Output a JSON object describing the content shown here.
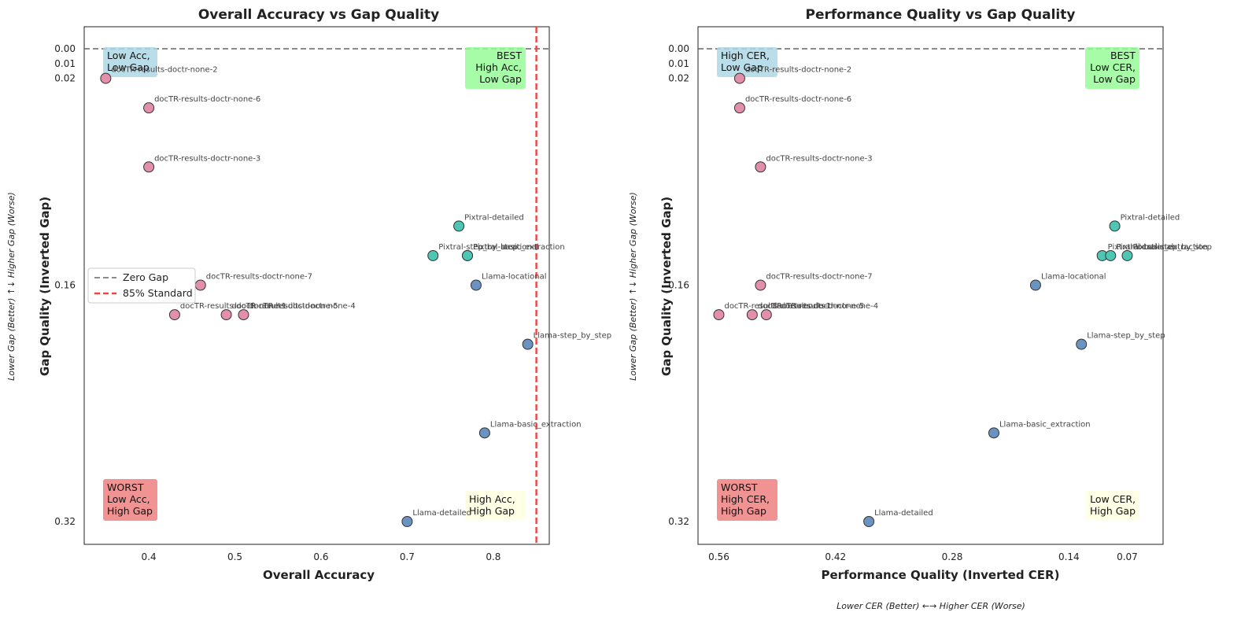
{
  "colors": {
    "docTR": "#e28fab",
    "Pixtral": "#4ec6b4",
    "Llama": "#6a93c1",
    "zero_gap": "#666666",
    "standard": "#ee4444",
    "box_blue": "#add8e6",
    "box_green": "#98fb98",
    "box_red": "#f08080",
    "box_yellow": "#ffffe0"
  },
  "chart_data": [
    {
      "type": "scatter",
      "title": "Overall Accuracy vs Gap Quality",
      "xlabel": "Overall Accuracy",
      "ylabel": "Gap Quality (Inverted Gap)",
      "side_ylabel": "Lower Gap (Better) ↑↓ Higher Gap (Worse)",
      "xlim": [
        0.325,
        0.865
      ],
      "ylim": [
        0.0,
        0.32
      ],
      "y_inverted": true,
      "x_ticks": [
        {
          "v": 0.4,
          "label": "0.4"
        },
        {
          "v": 0.5,
          "label": "0.5"
        },
        {
          "v": 0.6,
          "label": "0.6"
        },
        {
          "v": 0.7,
          "label": "0.7"
        },
        {
          "v": 0.8,
          "label": "0.8"
        }
      ],
      "y_ticks": [
        {
          "v": 0.0,
          "label": "0.00"
        },
        {
          "v": 0.01,
          "label": "0.01"
        },
        {
          "v": 0.02,
          "label": "0.02"
        },
        {
          "v": 0.16,
          "label": "0.16"
        },
        {
          "v": 0.32,
          "label": "0.32"
        }
      ],
      "hlines": [
        {
          "y": 0.0,
          "name": "Zero Gap",
          "style": "dashed",
          "color": "#666666"
        }
      ],
      "vlines": [
        {
          "x": 0.85,
          "name": "85% Standard",
          "style": "dashed",
          "color": "#ee4444"
        }
      ],
      "legend": {
        "placement": "center-left",
        "entries": [
          {
            "label": "Zero Gap",
            "style": "gray-dash"
          },
          {
            "label": "85% Standard",
            "style": "red-dash"
          }
        ]
      },
      "quadrant_boxes": [
        {
          "pos": "top-left",
          "lines": [
            "Low Acc,",
            "Low Gap"
          ],
          "color": "#add8e6",
          "align": "start"
        },
        {
          "pos": "top-right",
          "lines": [
            "BEST",
            "High Acc,",
            "Low Gap"
          ],
          "color": "#98fb98",
          "align": "end"
        },
        {
          "pos": "bottom-left",
          "lines": [
            "WORST",
            "Low Acc,",
            "High Gap"
          ],
          "color": "#f08080",
          "align": "start"
        },
        {
          "pos": "bottom-right",
          "lines": [
            "High Acc,",
            "High Gap"
          ],
          "color": "#ffffe0",
          "align": "start"
        }
      ],
      "points": [
        {
          "label": "docTR-results-doctr-none-2",
          "x": 0.35,
          "y": 0.02,
          "group": "docTR"
        },
        {
          "label": "docTR-results-doctr-none-6",
          "x": 0.4,
          "y": 0.04,
          "group": "docTR"
        },
        {
          "label": "docTR-results-doctr-none-3",
          "x": 0.4,
          "y": 0.08,
          "group": "docTR"
        },
        {
          "label": "docTR-results-doctr-none-7",
          "x": 0.46,
          "y": 0.16,
          "group": "docTR"
        },
        {
          "label": "docTR-results-doctr-none-1",
          "x": 0.43,
          "y": 0.18,
          "group": "docTR"
        },
        {
          "label": "docTR-results-doctr-none-5",
          "x": 0.49,
          "y": 0.18,
          "group": "docTR"
        },
        {
          "label": "docTR-results-doctr-none-4",
          "x": 0.51,
          "y": 0.18,
          "group": "docTR"
        },
        {
          "label": "Pixtral-detailed",
          "x": 0.76,
          "y": 0.12,
          "group": "Pixtral"
        },
        {
          "label": "Pixtral-step_by_step",
          "x": 0.73,
          "y": 0.14,
          "group": "Pixtral"
        },
        {
          "label": "Pixtral-locational",
          "x": 0.77,
          "y": 0.14,
          "group": "Pixtral"
        },
        {
          "label": "Pixtral-basic_extraction",
          "x": 0.77,
          "y": 0.14,
          "group": "Pixtral"
        },
        {
          "label": "Llama-locational",
          "x": 0.78,
          "y": 0.16,
          "group": "Llama"
        },
        {
          "label": "Llama-step_by_step",
          "x": 0.84,
          "y": 0.2,
          "group": "Llama"
        },
        {
          "label": "Llama-basic_extraction",
          "x": 0.79,
          "y": 0.26,
          "group": "Llama"
        },
        {
          "label": "Llama-detailed",
          "x": 0.7,
          "y": 0.32,
          "group": "Llama"
        }
      ]
    },
    {
      "type": "scatter",
      "title": "Performance Quality vs Gap Quality",
      "xlabel": "Performance Quality (Inverted CER)",
      "side_xlabel": "Lower CER (Better) ←→ Higher CER (Worse)",
      "ylabel": "Gap Quality (Inverted Gap)",
      "side_ylabel": "Lower Gap (Better) ↑↓ Higher Gap (Worse)",
      "xlim": [
        0.585,
        0.027
      ],
      "ylim": [
        0.0,
        0.32
      ],
      "x_inverted": true,
      "y_inverted": true,
      "x_ticks": [
        {
          "v": 0.56,
          "label": "0.56"
        },
        {
          "v": 0.42,
          "label": "0.42"
        },
        {
          "v": 0.28,
          "label": "0.28"
        },
        {
          "v": 0.14,
          "label": "0.14"
        },
        {
          "v": 0.07,
          "label": "0.07"
        }
      ],
      "y_ticks": [
        {
          "v": 0.0,
          "label": "0.00"
        },
        {
          "v": 0.01,
          "label": "0.01"
        },
        {
          "v": 0.02,
          "label": "0.02"
        },
        {
          "v": 0.16,
          "label": "0.16"
        },
        {
          "v": 0.32,
          "label": "0.32"
        }
      ],
      "hlines": [
        {
          "y": 0.0,
          "name": "Zero Gap",
          "style": "dashed",
          "color": "#666666"
        }
      ],
      "quadrant_boxes": [
        {
          "pos": "top-left",
          "lines": [
            "High CER,",
            "Low Gap"
          ],
          "color": "#add8e6",
          "align": "start"
        },
        {
          "pos": "top-right",
          "lines": [
            "BEST",
            "Low CER,",
            "Low Gap"
          ],
          "color": "#98fb98",
          "align": "end"
        },
        {
          "pos": "bottom-left",
          "lines": [
            "WORST",
            "High CER,",
            "High Gap"
          ],
          "color": "#f08080",
          "align": "start"
        },
        {
          "pos": "bottom-right",
          "lines": [
            "Low CER,",
            "High Gap"
          ],
          "color": "#ffffe0",
          "align": "end"
        }
      ],
      "points": [
        {
          "label": "docTR-results-doctr-none-2",
          "x": 0.535,
          "y": 0.02,
          "group": "docTR"
        },
        {
          "label": "docTR-results-doctr-none-6",
          "x": 0.535,
          "y": 0.04,
          "group": "docTR"
        },
        {
          "label": "docTR-results-doctr-none-3",
          "x": 0.51,
          "y": 0.08,
          "group": "docTR"
        },
        {
          "label": "docTR-results-doctr-none-7",
          "x": 0.51,
          "y": 0.16,
          "group": "docTR"
        },
        {
          "label": "docTR-results-doctr-none-1",
          "x": 0.56,
          "y": 0.18,
          "group": "docTR"
        },
        {
          "label": "docTR-results-doctr-none-5",
          "x": 0.52,
          "y": 0.18,
          "group": "docTR"
        },
        {
          "label": "docTR-results-doctr-none-4",
          "x": 0.503,
          "y": 0.18,
          "group": "docTR"
        },
        {
          "label": "Pixtral-detailed",
          "x": 0.085,
          "y": 0.12,
          "group": "Pixtral"
        },
        {
          "label": "Pixtral-locational",
          "x": 0.1,
          "y": 0.14,
          "group": "Pixtral"
        },
        {
          "label": "Pixtral-basic_extraction",
          "x": 0.09,
          "y": 0.14,
          "group": "Pixtral"
        },
        {
          "label": "Pixtral-step_by_step",
          "x": 0.07,
          "y": 0.14,
          "group": "Pixtral"
        },
        {
          "label": "Llama-locational",
          "x": 0.18,
          "y": 0.16,
          "group": "Llama"
        },
        {
          "label": "Llama-step_by_step",
          "x": 0.125,
          "y": 0.2,
          "group": "Llama"
        },
        {
          "label": "Llama-basic_extraction",
          "x": 0.23,
          "y": 0.26,
          "group": "Llama"
        },
        {
          "label": "Llama-detailed",
          "x": 0.38,
          "y": 0.32,
          "group": "Llama"
        }
      ]
    }
  ]
}
